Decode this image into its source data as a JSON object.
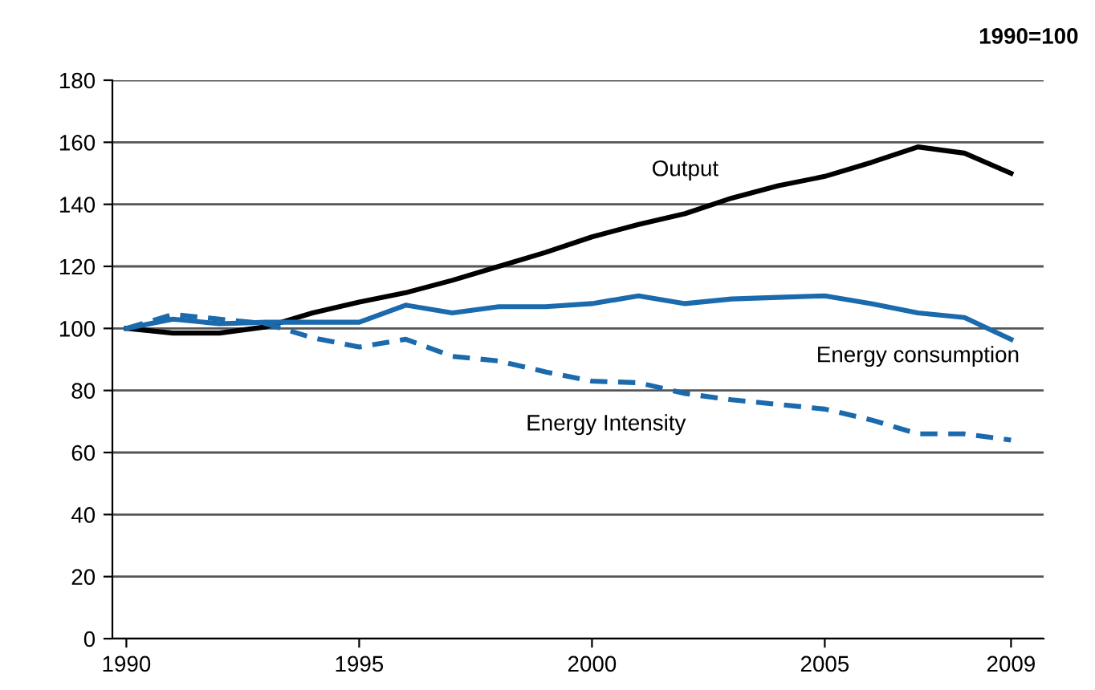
{
  "chart_data": {
    "type": "line",
    "x": [
      1990,
      1991,
      1992,
      1993,
      1994,
      1995,
      1996,
      1997,
      1998,
      1999,
      2000,
      2001,
      2002,
      2003,
      2004,
      2005,
      2006,
      2007,
      2008,
      2009
    ],
    "series": [
      {
        "name": "Output",
        "color": "#000000",
        "line_style": "solid",
        "values": [
          100,
          98.5,
          98.5,
          100.5,
          105,
          108.5,
          111.5,
          115.5,
          120,
          124.5,
          129.5,
          133.5,
          137,
          142,
          146,
          149,
          153.5,
          158.5,
          156.5,
          150
        ]
      },
      {
        "name": "Energy consumption",
        "color": "#1a6aad",
        "line_style": "solid",
        "values": [
          100,
          103,
          101.5,
          102,
          102,
          102,
          107.5,
          105,
          107,
          107,
          108,
          110.5,
          108,
          109.5,
          110,
          110.5,
          108,
          105,
          103.5,
          96.5
        ]
      },
      {
        "name": "Energy Intensity",
        "color": "#1a6aad",
        "line_style": "dashed",
        "values": [
          100,
          104.5,
          103,
          101.5,
          97,
          94,
          96.5,
          91,
          89.5,
          86,
          83,
          82.5,
          79,
          77,
          75.5,
          74,
          70.5,
          66,
          66,
          64
        ]
      }
    ],
    "xlim": [
      1989.7,
      2009.7
    ],
    "xticks": [
      1990,
      1995,
      2000,
      2005,
      2009
    ],
    "ylim": [
      0,
      180
    ],
    "yticks": [
      0,
      20,
      40,
      60,
      80,
      100,
      120,
      140,
      160,
      180
    ],
    "grid": "y",
    "legend": false,
    "marker": "none",
    "annotations": [
      "1990=100"
    ]
  }
}
